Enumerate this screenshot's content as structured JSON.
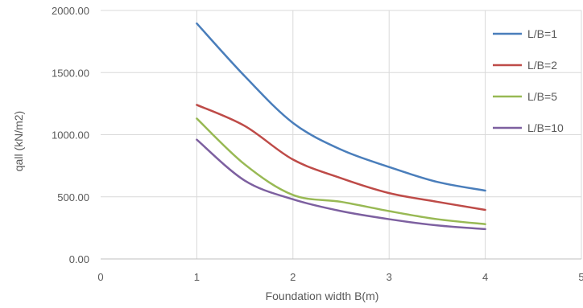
{
  "chart_data": {
    "type": "line",
    "xlabel": "Foundation width B(m)",
    "ylabel": "qall (kN/m2)",
    "xlim": [
      0,
      5
    ],
    "ylim": [
      0,
      2000
    ],
    "x_ticks": [
      "0",
      "1",
      "2",
      "3",
      "4",
      "5"
    ],
    "y_ticks": [
      "0.00",
      "500.00",
      "1000.00",
      "1500.00",
      "2000.00"
    ],
    "grid": "vertical and horizontal",
    "legend_position": "right",
    "x": [
      1,
      1.5,
      2,
      2.5,
      3,
      3.5,
      4
    ],
    "series": [
      {
        "name": "L/B=1",
        "color": "#4a7ebb",
        "values": [
          1895,
          1470,
          1095,
          880,
          740,
          620,
          550
        ]
      },
      {
        "name": "L/B=2",
        "color": "#be4b48",
        "values": [
          1240,
          1070,
          800,
          650,
          530,
          460,
          395
        ]
      },
      {
        "name": "L/B=5",
        "color": "#98b954",
        "values": [
          1130,
          760,
          515,
          460,
          385,
          320,
          280
        ]
      },
      {
        "name": "L/B=10",
        "color": "#7d60a0",
        "values": [
          960,
          630,
          480,
          385,
          320,
          270,
          240
        ]
      }
    ]
  }
}
